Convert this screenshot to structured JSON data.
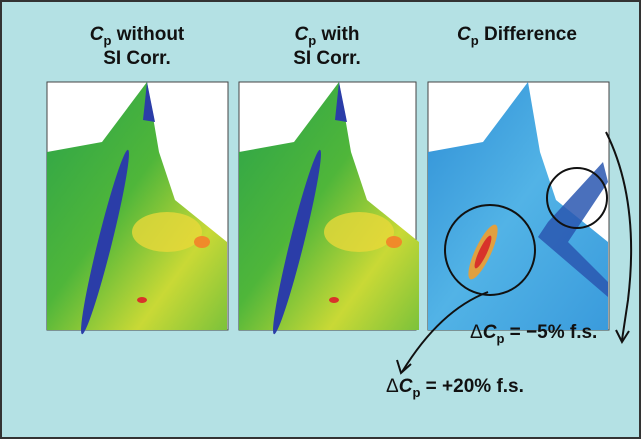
{
  "panels": [
    {
      "title": {
        "symbol": "C",
        "subscript": "p",
        "text": " without"
      },
      "subtitle": "SI Corr."
    },
    {
      "title": {
        "symbol": "C",
        "subscript": "p",
        "text": " with"
      },
      "subtitle": "SI Corr."
    },
    {
      "title": {
        "symbol": "C",
        "subscript": "p",
        "text": " Difference"
      }
    }
  ],
  "annotations": [
    {
      "prefix": "Δ",
      "symbol": "C",
      "subscript": "p",
      "text": " = −5% f.s."
    },
    {
      "prefix": "Δ",
      "symbol": "C",
      "subscript": "p",
      "text": " = +20% f.s."
    }
  ]
}
